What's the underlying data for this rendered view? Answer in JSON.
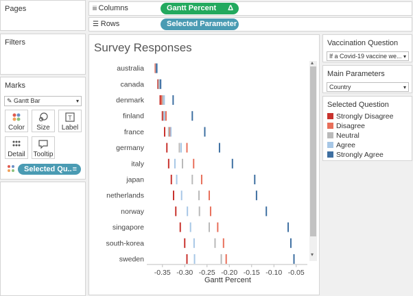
{
  "left_panel": {
    "pages_title": "Pages",
    "filters_title": "Filters",
    "marks_title": "Marks",
    "mark_type": "Gantt Bar",
    "buttons": {
      "color": "Color",
      "size": "Size",
      "label": "Label",
      "detail": "Detail",
      "tooltip": "Tooltip"
    },
    "mark_pill": "Selected Qu.."
  },
  "shelves": {
    "columns_label": "Columns",
    "columns_pill": "Gantt Percent",
    "columns_pill_symbol": "Δ",
    "rows_label": "Rows",
    "rows_pill": "Selected Parameter"
  },
  "right_panel": {
    "vacc_title": "Vaccination Question",
    "vacc_value": "If a Covid-19 vaccine we...",
    "params_title": "Main Parameters",
    "params_value": "Country",
    "legend_title": "Selected Question",
    "legend": [
      {
        "label": "Strongly Disagree",
        "color": "#c8322d"
      },
      {
        "label": "Disagree",
        "color": "#e86f5a"
      },
      {
        "label": "Neutral",
        "color": "#b9b9b9"
      },
      {
        "label": "Agree",
        "color": "#a7c7e6"
      },
      {
        "label": "Strongly Agree",
        "color": "#3e6fa1"
      }
    ]
  },
  "chart_data": {
    "type": "gantt",
    "title": "Survey Responses",
    "xlabel": "Gantt Percent",
    "xlim": [
      -0.385,
      -0.025
    ],
    "xticks": [
      "-0.35",
      "-0.30",
      "-0.25",
      "-0.20",
      "-0.15",
      "-0.10",
      "-0.05"
    ],
    "xtick_values": [
      -0.35,
      -0.3,
      -0.25,
      -0.2,
      -0.15,
      -0.1,
      -0.05
    ],
    "categories": [
      "australia",
      "canada",
      "denmark",
      "finland",
      "france",
      "germany",
      "italy",
      "japan",
      "netherlands",
      "norway",
      "singapore",
      "south-korea",
      "sweden"
    ],
    "series": [
      {
        "name": "Strongly Disagree",
        "color": "#c8322d",
        "values": [
          -0.365,
          -0.36,
          -0.355,
          -0.35,
          -0.345,
          -0.34,
          -0.336,
          -0.33,
          -0.325,
          -0.32,
          -0.31,
          -0.3,
          -0.295
        ]
      },
      {
        "name": "Disagree",
        "color": "#e86f5a",
        "values": [
          -0.366,
          -0.357,
          -0.352,
          -0.342,
          -0.333,
          -0.295,
          -0.28,
          -0.262,
          -0.245,
          -0.242,
          -0.226,
          -0.213,
          -0.207
        ]
      },
      {
        "name": "Neutral",
        "color": "#b9b9b9",
        "values": [
          -0.364,
          -0.358,
          -0.349,
          -0.347,
          -0.336,
          -0.312,
          -0.305,
          -0.283,
          -0.268,
          -0.267,
          -0.245,
          -0.232,
          -0.218
        ]
      },
      {
        "name": "Agree",
        "color": "#a7c7e6",
        "values": [
          -0.362,
          -0.355,
          -0.346,
          -0.345,
          -0.331,
          -0.308,
          -0.322,
          -0.318,
          -0.307,
          -0.294,
          -0.287,
          -0.279,
          -0.278
        ]
      },
      {
        "name": "Strongly Agree",
        "color": "#3e6fa1",
        "values": [
          -0.363,
          -0.354,
          -0.326,
          -0.283,
          -0.255,
          -0.222,
          -0.193,
          -0.143,
          -0.139,
          -0.117,
          -0.068,
          -0.062,
          -0.055
        ]
      }
    ]
  }
}
